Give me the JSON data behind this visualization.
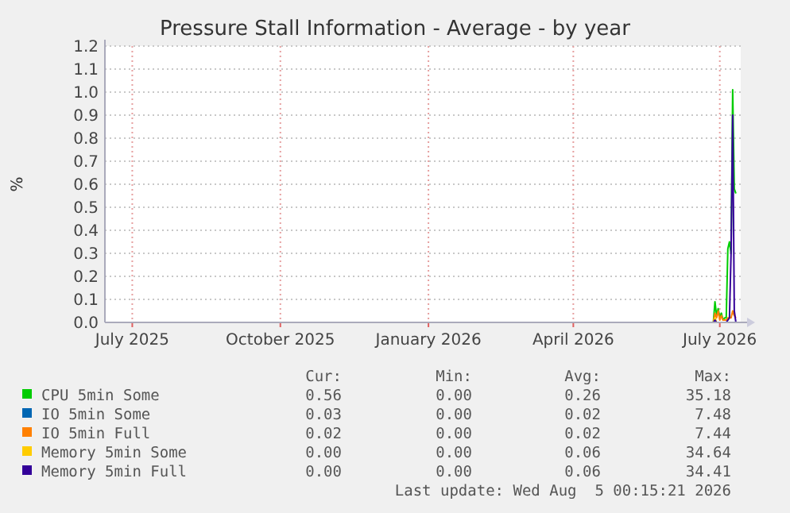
{
  "chart_data": {
    "type": "line",
    "title": "Pressure Stall Information - Average - by year",
    "ylabel": "%",
    "x": [
      "2026-06-27",
      "2026-06-28",
      "2026-06-29",
      "2026-06-30",
      "2026-07-01",
      "2026-07-02",
      "2026-07-03",
      "2026-07-04",
      "2026-07-05",
      "2026-07-06",
      "2026-07-07",
      "2026-07-08",
      "2026-07-09",
      "2026-07-10",
      "2026-07-11"
    ],
    "series": [
      {
        "name": "CPU 5min Some",
        "color": "#00cc00",
        "values": [
          0.0,
          0.09,
          0.03,
          0.06,
          0.02,
          0.04,
          0.01,
          0.02,
          0.02,
          0.32,
          0.35,
          0.3,
          1.01,
          0.58,
          0.56
        ]
      },
      {
        "name": "IO 5min Some",
        "color": "#0066b3",
        "values": [
          null,
          null,
          null,
          null,
          null,
          null,
          null,
          null,
          null,
          null,
          null,
          null,
          null,
          null,
          null
        ]
      },
      {
        "name": "IO 5min Full",
        "color": "#ff8000",
        "values": [
          0.0,
          0.04,
          0.02,
          0.05,
          0.01,
          0.03,
          0.01,
          0.01,
          0.01,
          0.02,
          0.02,
          0.02,
          0.05,
          0.03,
          0.02
        ]
      },
      {
        "name": "Memory 5min Some",
        "color": "#ffcc00",
        "values": [
          0.0,
          0.02,
          0.0,
          0.0,
          0.0,
          0.0,
          null,
          null,
          null,
          null,
          null,
          null,
          null,
          null,
          null
        ]
      },
      {
        "name": "Memory 5min Full",
        "color": "#330099",
        "values": [
          0.0,
          0.01,
          0.0,
          0.0,
          0.0,
          0.0,
          0.0,
          0.0,
          0.0,
          0.01,
          0.02,
          0.3,
          0.9,
          0.05,
          0.0
        ]
      }
    ],
    "xlim": [
      "2025-06-14",
      "2026-07-14"
    ],
    "xticks": [
      {
        "value": "2025-07-01",
        "label": "July 2025"
      },
      {
        "value": "2025-10-01",
        "label": "October 2025"
      },
      {
        "value": "2026-01-01",
        "label": "January 2026"
      },
      {
        "value": "2026-04-01",
        "label": "April 2026"
      },
      {
        "value": "2026-07-01",
        "label": "July 2026"
      }
    ],
    "ylim": [
      0,
      1.2
    ],
    "yticks": [
      {
        "value": 0,
        "label": "0.0"
      },
      0.1,
      0.2,
      0.3,
      0.4,
      0.5,
      0.6,
      0.7,
      0.8,
      0.9,
      {
        "value": 1,
        "label": "1.0"
      },
      1.1,
      1.2
    ],
    "grid": true,
    "legend": "bottom",
    "line_style": "solid",
    "marker": "none",
    "annotations": [
      "Cur:",
      "Min:",
      "Avg:",
      "Max:",
      "0.56",
      "0.00",
      "0.26",
      "35.18",
      "0.03",
      "0.00",
      "0.02",
      "7.48",
      "0.02",
      "0.00",
      "0.02",
      "7.44",
      "0.00",
      "0.00",
      "0.06",
      "34.64",
      "0.00",
      "0.00",
      "0.06",
      "34.41",
      "Last update: Wed Aug  5 00:15:21 2026"
    ]
  }
}
